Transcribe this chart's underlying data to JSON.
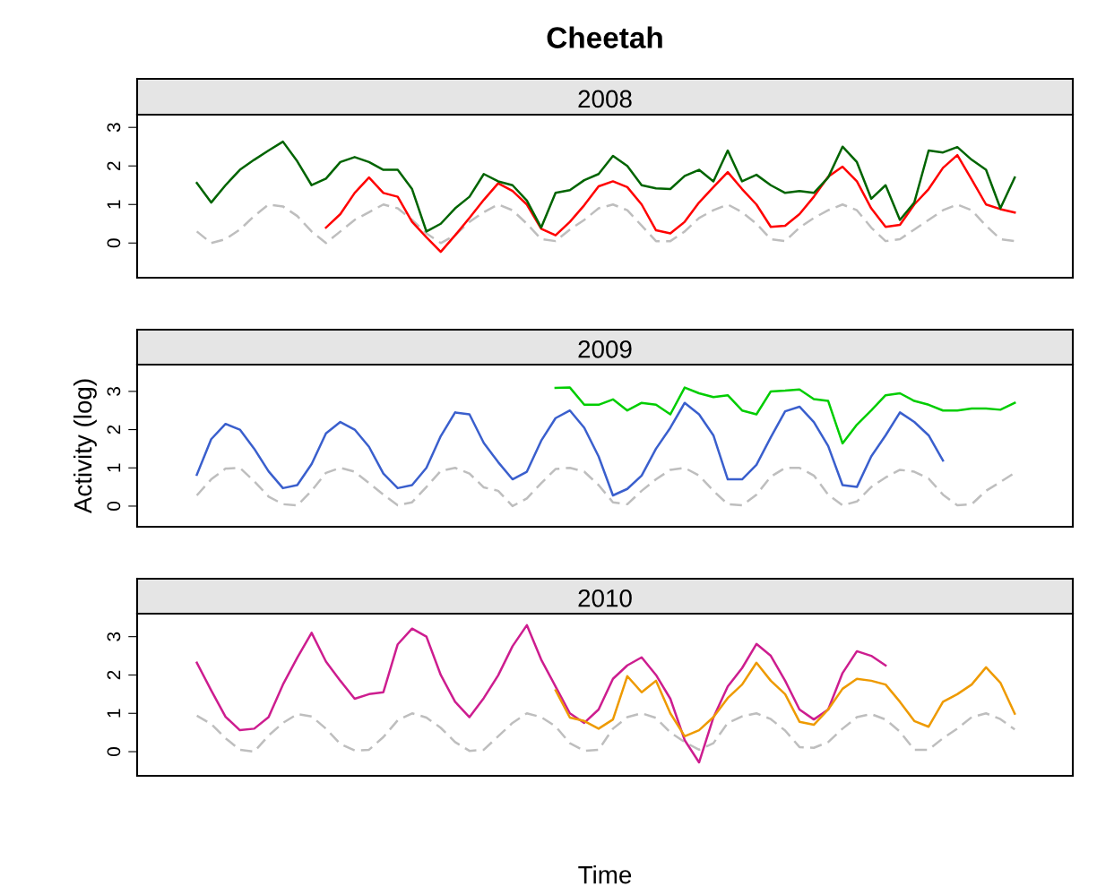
{
  "chart_data": [
    {
      "type": "line",
      "title": "Cheetah",
      "subtitle": "2008",
      "tick_labels": "y",
      "ylim": [
        -0.9,
        3.33
      ],
      "yticks": [
        0,
        1,
        2,
        3
      ],
      "categories": [
        null,
        null,
        null,
        null,
        null,
        null,
        null,
        null,
        null,
        null,
        null,
        null,
        null,
        null,
        null,
        null,
        null,
        null,
        null,
        null,
        null,
        null,
        null,
        null,
        null,
        null,
        null,
        null,
        null,
        null,
        null,
        null,
        null,
        null,
        null,
        null,
        null,
        null,
        null,
        null,
        null,
        null,
        null,
        null,
        null,
        null,
        null,
        null,
        null,
        null,
        null,
        null,
        null,
        null,
        null,
        null,
        null,
        null
      ],
      "series": [
        {
          "color": "#bebebe",
          "line_style": "dashed",
          "values": [
            0.3,
            0.0,
            0.1,
            0.35,
            0.7,
            1.0,
            0.95,
            0.7,
            0.3,
            0.0,
            0.3,
            0.6,
            0.8,
            1.0,
            0.9,
            0.6,
            0.25,
            0.0,
            0.2,
            0.55,
            0.8,
            1.0,
            0.85,
            0.5,
            0.1,
            0.05,
            0.35,
            0.6,
            0.9,
            1.0,
            0.85,
            0.45,
            0.05,
            0.05,
            0.3,
            0.65,
            0.85,
            1.0,
            0.8,
            0.5,
            0.1,
            0.05,
            0.4,
            0.65,
            0.85,
            1.0,
            0.85,
            0.4,
            0.05,
            0.1,
            0.35,
            0.6,
            0.85,
            1.0,
            0.85,
            0.45,
            0.1,
            0.05
          ]
        },
        {
          "color": "#ff0000",
          "values": [
            null,
            null,
            null,
            null,
            null,
            null,
            null,
            null,
            null,
            0.4,
            0.75,
            1.3,
            1.7,
            1.3,
            1.2,
            0.55,
            0.15,
            -0.23,
            0.2,
            0.65,
            1.12,
            1.55,
            1.35,
            1.0,
            0.37,
            0.2,
            0.55,
            0.98,
            1.47,
            1.6,
            1.45,
            1.0,
            0.33,
            0.25,
            0.55,
            1.05,
            1.45,
            1.84,
            1.4,
            1.0,
            0.42,
            0.45,
            0.75,
            1.2,
            1.72,
            1.98,
            1.6,
            0.9,
            0.42,
            0.47,
            1.0,
            1.4,
            1.95,
            2.28,
            1.65,
            1.0,
            0.88,
            0.79
          ]
        },
        {
          "color": "#006400",
          "values": [
            1.56,
            1.05,
            1.5,
            1.9,
            2.16,
            2.4,
            2.63,
            2.12,
            1.5,
            1.67,
            2.1,
            2.23,
            2.1,
            1.9,
            1.9,
            1.4,
            0.3,
            0.5,
            0.9,
            1.2,
            1.79,
            1.6,
            1.5,
            1.1,
            0.4,
            1.3,
            1.37,
            1.63,
            1.79,
            2.26,
            2.0,
            1.5,
            1.42,
            1.4,
            1.74,
            1.9,
            1.6,
            2.4,
            1.6,
            1.77,
            1.5,
            1.3,
            1.35,
            1.3,
            1.7,
            2.5,
            2.1,
            1.15,
            1.5,
            0.6,
            1.05,
            2.4,
            2.35,
            2.49,
            2.16,
            1.9,
            0.9,
            1.7
          ]
        }
      ]
    },
    {
      "type": "line",
      "subtitle": "2009",
      "ylabel": "Activity (log)",
      "tick_labels": "y",
      "ylim": [
        -0.54,
        3.7
      ],
      "yticks": [
        0,
        1,
        2,
        3
      ],
      "categories": [
        null,
        null,
        null,
        null,
        null,
        null,
        null,
        null,
        null,
        null,
        null,
        null,
        null,
        null,
        null,
        null,
        null,
        null,
        null,
        null,
        null,
        null,
        null,
        null,
        null,
        null,
        null,
        null,
        null,
        null,
        null,
        null,
        null,
        null,
        null,
        null,
        null,
        null,
        null,
        null,
        null,
        null,
        null,
        null,
        null,
        null,
        null,
        null,
        null,
        null,
        null,
        null,
        null,
        null,
        null,
        null,
        null,
        null
      ],
      "series": [
        {
          "color": "#bebebe",
          "line_style": "dashed",
          "values": [
            0.28,
            0.7,
            0.98,
            1.0,
            0.65,
            0.25,
            0.05,
            0.02,
            0.4,
            0.87,
            1.0,
            0.9,
            0.6,
            0.3,
            0.02,
            0.1,
            0.5,
            0.92,
            1.0,
            0.85,
            0.49,
            0.4,
            0.0,
            0.2,
            0.6,
            0.97,
            1.0,
            0.9,
            0.55,
            0.1,
            0.05,
            0.4,
            0.7,
            0.95,
            1.0,
            0.8,
            0.4,
            0.05,
            0.02,
            0.3,
            0.77,
            1.0,
            1.0,
            0.8,
            0.3,
            0.02,
            0.12,
            0.5,
            0.75,
            0.95,
            0.9,
            0.72,
            0.3,
            0.02,
            0.05,
            0.4,
            0.63,
            0.87
          ]
        },
        {
          "color": "#3a5fcd",
          "values": [
            0.82,
            1.75,
            2.15,
            2.0,
            1.5,
            0.91,
            0.47,
            0.55,
            1.1,
            1.9,
            2.2,
            2.0,
            1.55,
            0.85,
            0.47,
            0.55,
            1.0,
            1.83,
            2.45,
            2.4,
            1.65,
            1.15,
            0.7,
            0.9,
            1.71,
            2.3,
            2.5,
            2.05,
            1.3,
            0.28,
            0.45,
            0.8,
            1.5,
            2.05,
            2.7,
            2.4,
            1.85,
            0.7,
            0.7,
            1.08,
            1.8,
            2.48,
            2.6,
            2.2,
            1.57,
            0.55,
            0.5,
            1.3,
            1.85,
            2.45,
            2.2,
            1.85,
            1.19,
            null,
            null,
            null,
            null,
            null
          ]
        },
        {
          "color": "#00cd00",
          "values": [
            null,
            null,
            null,
            null,
            null,
            null,
            null,
            null,
            null,
            null,
            null,
            null,
            null,
            null,
            null,
            null,
            null,
            null,
            null,
            null,
            null,
            null,
            null,
            null,
            null,
            3.09,
            3.1,
            2.65,
            2.65,
            2.79,
            2.5,
            2.7,
            2.65,
            2.4,
            3.1,
            2.95,
            2.85,
            2.9,
            2.5,
            2.4,
            3.0,
            3.02,
            3.05,
            2.8,
            2.75,
            1.64,
            2.13,
            2.5,
            2.9,
            2.95,
            2.75,
            2.65,
            2.5,
            2.5,
            2.55,
            2.55,
            2.52,
            2.7
          ]
        }
      ]
    },
    {
      "type": "line",
      "subtitle": "2010",
      "xlabel": "Time",
      "tick_labels": "y",
      "ylim": [
        -0.63,
        3.6
      ],
      "yticks": [
        0,
        1,
        2,
        3
      ],
      "categories": [
        null,
        null,
        null,
        null,
        null,
        null,
        null,
        null,
        null,
        null,
        null,
        null,
        null,
        null,
        null,
        null,
        null,
        null,
        null,
        null,
        null,
        null,
        null,
        null,
        null,
        null,
        null,
        null,
        null,
        null,
        null,
        null,
        null,
        null,
        null,
        null,
        null,
        null,
        null,
        null,
        null,
        null,
        null,
        null,
        null,
        null,
        null,
        null,
        null,
        null,
        null,
        null,
        null,
        null,
        null,
        null,
        null,
        null
      ],
      "series": [
        {
          "color": "#bebebe",
          "line_style": "dashed",
          "values": [
            0.94,
            0.72,
            0.35,
            0.05,
            0.0,
            0.42,
            0.75,
            0.98,
            0.92,
            0.6,
            0.2,
            0.03,
            0.05,
            0.38,
            0.82,
            1.0,
            0.89,
            0.62,
            0.25,
            0.02,
            0.05,
            0.4,
            0.75,
            1.0,
            0.9,
            0.66,
            0.22,
            0.02,
            0.05,
            0.6,
            0.9,
            1.0,
            0.88,
            0.5,
            0.25,
            0.05,
            0.22,
            0.75,
            0.92,
            1.0,
            0.85,
            0.55,
            0.12,
            0.1,
            0.25,
            0.6,
            0.9,
            0.98,
            0.84,
            0.52,
            0.05,
            0.05,
            0.35,
            0.6,
            0.9,
            1.0,
            0.85,
            0.58
          ]
        },
        {
          "color": "#cd1d8f",
          "values": [
            2.32,
            1.6,
            0.91,
            0.56,
            0.6,
            0.9,
            1.75,
            2.45,
            3.1,
            2.35,
            1.85,
            1.38,
            1.5,
            1.55,
            2.8,
            3.21,
            3.0,
            2.0,
            1.3,
            0.9,
            1.4,
            1.99,
            2.75,
            3.3,
            2.4,
            1.7,
            1.0,
            0.75,
            1.1,
            1.9,
            2.25,
            2.46,
            2.0,
            1.38,
            0.3,
            -0.28,
            0.89,
            1.7,
            2.18,
            2.81,
            2.5,
            1.85,
            1.1,
            0.84,
            1.1,
            2.05,
            2.62,
            2.5,
            2.25,
            null,
            null,
            null,
            null,
            null,
            null,
            null,
            null,
            null
          ]
        },
        {
          "color": "#ee9a00",
          "values": [
            null,
            null,
            null,
            null,
            null,
            null,
            null,
            null,
            null,
            null,
            null,
            null,
            null,
            null,
            null,
            null,
            null,
            null,
            null,
            null,
            null,
            null,
            null,
            null,
            null,
            1.6,
            0.89,
            0.8,
            0.6,
            0.84,
            1.97,
            1.55,
            1.85,
            1.0,
            0.4,
            0.56,
            0.9,
            1.4,
            1.75,
            2.32,
            1.85,
            1.5,
            0.78,
            0.7,
            1.1,
            1.64,
            1.9,
            1.85,
            1.75,
            1.3,
            0.8,
            0.65,
            1.3,
            1.5,
            1.75,
            2.2,
            1.8,
            0.99
          ]
        }
      ]
    }
  ]
}
